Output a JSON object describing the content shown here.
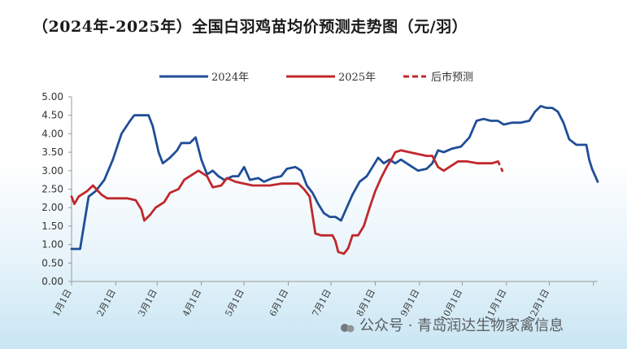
{
  "chart_data": {
    "type": "line",
    "title": "（2024年-2025年）全国白羽鸡苗均价预测走势图（元/羽）",
    "x_tick_labels": [
      "1月1日",
      "2月1日",
      "3月1日",
      "4月1日",
      "5月1日",
      "6月1日",
      "7月1日",
      "8月1日",
      "9月1日",
      "10月1日",
      "11月1日",
      "12月1日"
    ],
    "y_tick_labels": [
      "0.00",
      "0.50",
      "1.00",
      "1.50",
      "2.00",
      "2.50",
      "3.00",
      "3.50",
      "4.00",
      "4.50",
      "5.00"
    ],
    "ylim": [
      0,
      5
    ],
    "x_unit": "day of year (day 1 = 1月1日)",
    "grid": false,
    "legend_position": "top",
    "series": [
      {
        "name": "2024年",
        "color": "#1f4e96",
        "style": "solid",
        "points": [
          [
            1,
            0.88
          ],
          [
            7,
            0.88
          ],
          [
            10,
            1.6
          ],
          [
            13,
            2.3
          ],
          [
            18,
            2.45
          ],
          [
            24,
            2.75
          ],
          [
            30,
            3.3
          ],
          [
            36,
            4.0
          ],
          [
            42,
            4.35
          ],
          [
            45,
            4.5
          ],
          [
            55,
            4.5
          ],
          [
            58,
            4.2
          ],
          [
            62,
            3.5
          ],
          [
            65,
            3.2
          ],
          [
            70,
            3.35
          ],
          [
            75,
            3.55
          ],
          [
            78,
            3.75
          ],
          [
            84,
            3.75
          ],
          [
            88,
            3.9
          ],
          [
            92,
            3.3
          ],
          [
            96,
            2.9
          ],
          [
            100,
            3.0
          ],
          [
            104,
            2.85
          ],
          [
            108,
            2.75
          ],
          [
            114,
            2.85
          ],
          [
            118,
            2.85
          ],
          [
            122,
            3.1
          ],
          [
            126,
            2.75
          ],
          [
            132,
            2.8
          ],
          [
            136,
            2.7
          ],
          [
            142,
            2.8
          ],
          [
            148,
            2.85
          ],
          [
            152,
            3.05
          ],
          [
            158,
            3.1
          ],
          [
            162,
            3.0
          ],
          [
            166,
            2.6
          ],
          [
            170,
            2.4
          ],
          [
            174,
            2.1
          ],
          [
            178,
            1.85
          ],
          [
            182,
            1.75
          ],
          [
            186,
            1.75
          ],
          [
            190,
            1.65
          ],
          [
            194,
            2.0
          ],
          [
            198,
            2.35
          ],
          [
            203,
            2.7
          ],
          [
            208,
            2.85
          ],
          [
            212,
            3.1
          ],
          [
            216,
            3.35
          ],
          [
            220,
            3.2
          ],
          [
            224,
            3.3
          ],
          [
            228,
            3.2
          ],
          [
            232,
            3.3
          ],
          [
            236,
            3.2
          ],
          [
            240,
            3.1
          ],
          [
            244,
            3.0
          ],
          [
            250,
            3.05
          ],
          [
            254,
            3.2
          ],
          [
            258,
            3.55
          ],
          [
            262,
            3.5
          ],
          [
            268,
            3.6
          ],
          [
            274,
            3.65
          ],
          [
            280,
            3.9
          ],
          [
            285,
            4.35
          ],
          [
            290,
            4.4
          ],
          [
            295,
            4.35
          ],
          [
            300,
            4.35
          ],
          [
            304,
            4.25
          ],
          [
            310,
            4.3
          ],
          [
            316,
            4.3
          ],
          [
            322,
            4.35
          ],
          [
            326,
            4.6
          ],
          [
            330,
            4.75
          ],
          [
            334,
            4.7
          ],
          [
            338,
            4.7
          ],
          [
            342,
            4.6
          ],
          [
            346,
            4.3
          ],
          [
            350,
            3.85
          ],
          [
            355,
            3.7
          ],
          [
            362,
            3.7
          ],
          [
            364,
            3.3
          ],
          [
            366,
            3.05
          ],
          [
            370,
            2.7
          ]
        ]
      },
      {
        "name": "2025年",
        "color": "#c0282d",
        "style": "solid",
        "points": [
          [
            1,
            2.3
          ],
          [
            3,
            2.1
          ],
          [
            6,
            2.3
          ],
          [
            12,
            2.45
          ],
          [
            16,
            2.6
          ],
          [
            22,
            2.35
          ],
          [
            26,
            2.25
          ],
          [
            40,
            2.25
          ],
          [
            46,
            2.2
          ],
          [
            50,
            1.95
          ],
          [
            52,
            1.65
          ],
          [
            56,
            1.8
          ],
          [
            60,
            2.0
          ],
          [
            66,
            2.15
          ],
          [
            70,
            2.4
          ],
          [
            76,
            2.5
          ],
          [
            80,
            2.75
          ],
          [
            84,
            2.85
          ],
          [
            90,
            3.0
          ],
          [
            96,
            2.85
          ],
          [
            100,
            2.55
          ],
          [
            106,
            2.6
          ],
          [
            110,
            2.8
          ],
          [
            116,
            2.7
          ],
          [
            122,
            2.65
          ],
          [
            128,
            2.6
          ],
          [
            140,
            2.6
          ],
          [
            148,
            2.65
          ],
          [
            160,
            2.65
          ],
          [
            164,
            2.5
          ],
          [
            168,
            2.3
          ],
          [
            172,
            1.3
          ],
          [
            176,
            1.25
          ],
          [
            184,
            1.25
          ],
          [
            186,
            1.1
          ],
          [
            188,
            0.8
          ],
          [
            192,
            0.75
          ],
          [
            195,
            0.9
          ],
          [
            198,
            1.25
          ],
          [
            202,
            1.25
          ],
          [
            206,
            1.5
          ],
          [
            210,
            2.0
          ],
          [
            214,
            2.45
          ],
          [
            218,
            2.8
          ],
          [
            222,
            3.1
          ],
          [
            226,
            3.35
          ],
          [
            228,
            3.5
          ],
          [
            232,
            3.55
          ],
          [
            238,
            3.5
          ],
          [
            244,
            3.45
          ],
          [
            250,
            3.4
          ],
          [
            254,
            3.4
          ],
          [
            258,
            3.1
          ],
          [
            262,
            3.0
          ],
          [
            266,
            3.1
          ],
          [
            272,
            3.25
          ],
          [
            278,
            3.25
          ],
          [
            286,
            3.2
          ],
          [
            296,
            3.2
          ],
          [
            300,
            3.25
          ]
        ]
      },
      {
        "name": "后市预测",
        "color": "#c0282d",
        "style": "dashed",
        "points": [
          [
            300,
            3.25
          ],
          [
            302,
            3.1
          ],
          [
            304,
            2.9
          ]
        ]
      }
    ]
  },
  "watermark": {
    "text": "公众号 · 青岛润达生物家禽信息"
  }
}
